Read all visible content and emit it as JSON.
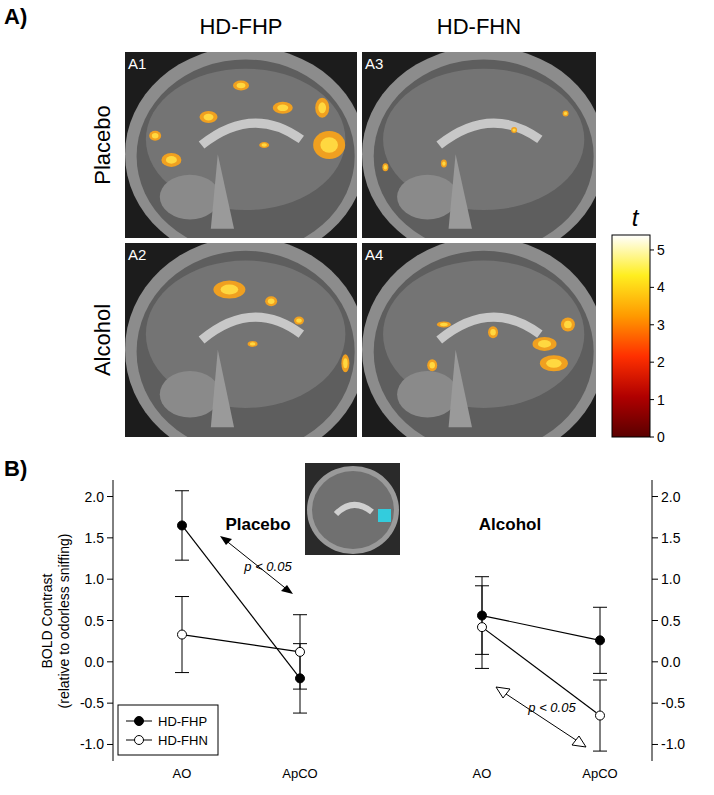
{
  "panel_a": {
    "label": "A)",
    "columns": [
      "HD-FHP",
      "HD-FHN"
    ],
    "rows": [
      "Placebo",
      "Alcohol"
    ],
    "panels": [
      [
        "A1",
        "A3"
      ],
      [
        "A2",
        "A4"
      ]
    ],
    "color_bar": {
      "label": "t",
      "range": [
        0,
        5.4
      ],
      "ticks": [
        0,
        1,
        2,
        3,
        4,
        5
      ]
    }
  },
  "panel_b_label": "B)",
  "chart_data": [
    {
      "type": "line",
      "title": "Placebo",
      "categories": [
        "AO",
        "ApCO"
      ],
      "ylabel": "BOLD Contrast\n(relative to odorless sniffing)",
      "ylim": [
        -1.2,
        2.2
      ],
      "yticks": [
        {
          "value": -1,
          "label": "-1.0"
        },
        {
          "value": -0.5,
          "label": "-0.5"
        },
        {
          "value": 0,
          "label": "0.0"
        },
        {
          "value": 0.5,
          "label": "0.5"
        },
        {
          "value": 1,
          "label": "1.0"
        },
        {
          "value": 1.5,
          "label": "1.5"
        },
        {
          "value": 2,
          "label": "2.0"
        }
      ],
      "legend": "lower left",
      "annotations": [
        "p < 0.05"
      ],
      "series": [
        {
          "name": "HD-FHP",
          "color": "#000000",
          "marker": "circle",
          "values": [
            1.65,
            -0.2
          ],
          "errors": [
            0.42,
            0.42
          ]
        },
        {
          "name": "HD-FHN",
          "color": "#000000",
          "marker": "open-circle",
          "values": [
            0.33,
            0.12
          ],
          "errors": [
            0.46,
            0.45
          ]
        }
      ]
    },
    {
      "type": "line",
      "title": "Alcohol",
      "categories": [
        "AO",
        "ApCO"
      ],
      "ylim": [
        -1.2,
        2.2
      ],
      "yticks": [
        {
          "value": -1,
          "label": "-1.0"
        },
        {
          "value": -0.5,
          "label": "-0.5"
        },
        {
          "value": 0,
          "label": "0.0"
        },
        {
          "value": 0.5,
          "label": "0.5"
        },
        {
          "value": 1,
          "label": "1.0"
        },
        {
          "value": 1.5,
          "label": "1.5"
        },
        {
          "value": 2,
          "label": "2.0"
        }
      ],
      "annotations": [
        "p < 0.05"
      ],
      "series": [
        {
          "name": "HD-FHP",
          "color": "#000000",
          "marker": "circle",
          "values": [
            0.56,
            0.26
          ],
          "errors": [
            0.47,
            0.4
          ]
        },
        {
          "name": "HD-FHN",
          "color": "#000000",
          "marker": "open-circle",
          "values": [
            0.42,
            -0.65
          ],
          "errors": [
            0.5,
            0.43
          ]
        }
      ]
    }
  ]
}
